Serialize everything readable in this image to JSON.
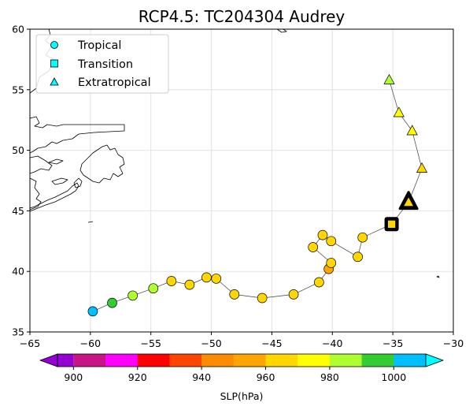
{
  "title": "RCP4.5: TC204304 Audrey",
  "legend": {
    "placement": "top-left",
    "items": [
      {
        "label": "Tropical",
        "marker": "circle"
      },
      {
        "label": "Transition",
        "marker": "square"
      },
      {
        "label": "Extratropical",
        "marker": "triangle"
      }
    ]
  },
  "colorbar": {
    "label": "SLP(hPa)",
    "tick_labels": [
      "900",
      "920",
      "940",
      "960",
      "980",
      "1000"
    ],
    "tick_values": [
      900,
      920,
      940,
      960,
      980,
      1000
    ],
    "bounds": [
      895,
      1010
    ],
    "extend": "both",
    "segments": [
      {
        "from": 900,
        "to": 905,
        "color": "#c71585"
      },
      {
        "from": 905,
        "to": 910,
        "color": "#c71585"
      },
      {
        "from": 910,
        "to": 920,
        "color": "#ff00ff"
      },
      {
        "from": 920,
        "to": 930,
        "color": "#ff0000"
      },
      {
        "from": 930,
        "to": 940,
        "color": "#ff4500"
      },
      {
        "from": 940,
        "to": 950,
        "color": "#ff8c00"
      },
      {
        "from": 950,
        "to": 960,
        "color": "#ffa500"
      },
      {
        "from": 960,
        "to": 970,
        "color": "#ffd700"
      },
      {
        "from": 970,
        "to": 980,
        "color": "#ffff00"
      },
      {
        "from": 980,
        "to": 990,
        "color": "#adff2f"
      },
      {
        "from": 990,
        "to": 1000,
        "color": "#32cd32"
      },
      {
        "from": 1000,
        "to": 1010,
        "color": "#00bfff"
      }
    ],
    "under_color": "#9400d3",
    "over_color": "#00ffff"
  },
  "chart_data": {
    "type": "scatter",
    "title": "RCP4.5: TC204304 Audrey",
    "xlim": [
      -65,
      -30
    ],
    "ylim": [
      35,
      60
    ],
    "x_tick_labels": [
      "−65",
      "−60",
      "−55",
      "−50",
      "−45",
      "−40",
      "−35",
      "−30"
    ],
    "x_tick_values": [
      -65,
      -60,
      -55,
      -50,
      -45,
      -40,
      -35,
      -30
    ],
    "y_tick_labels": [
      "35",
      "40",
      "45",
      "50",
      "55",
      "60"
    ],
    "y_tick_values": [
      35,
      40,
      45,
      50,
      55,
      60
    ],
    "grid": true,
    "track": [
      {
        "lon": -59.8,
        "lat": 36.7,
        "phase": "tropical",
        "color": "#00bfff"
      },
      {
        "lon": -58.2,
        "lat": 37.4,
        "phase": "tropical",
        "color": "#32cd32"
      },
      {
        "lon": -56.5,
        "lat": 38.0,
        "phase": "tropical",
        "color": "#adff2f"
      },
      {
        "lon": -54.8,
        "lat": 38.6,
        "phase": "tropical",
        "color": "#adff2f"
      },
      {
        "lon": -53.3,
        "lat": 39.2,
        "phase": "tropical",
        "color": "#ffd700"
      },
      {
        "lon": -51.8,
        "lat": 38.9,
        "phase": "tropical",
        "color": "#ffd700"
      },
      {
        "lon": -50.4,
        "lat": 39.5,
        "phase": "tropical",
        "color": "#ffd700"
      },
      {
        "lon": -49.6,
        "lat": 39.4,
        "phase": "tropical",
        "color": "#ffd700"
      },
      {
        "lon": -48.1,
        "lat": 38.1,
        "phase": "tropical",
        "color": "#ffd700"
      },
      {
        "lon": -45.8,
        "lat": 37.8,
        "phase": "tropical",
        "color": "#ffd700"
      },
      {
        "lon": -43.2,
        "lat": 38.1,
        "phase": "tropical",
        "color": "#ffd700"
      },
      {
        "lon": -41.1,
        "lat": 39.1,
        "phase": "tropical",
        "color": "#ffd700"
      },
      {
        "lon": -40.3,
        "lat": 40.2,
        "phase": "tropical",
        "color": "#ffa500"
      },
      {
        "lon": -40.1,
        "lat": 40.7,
        "phase": "tropical",
        "color": "#ffd700"
      },
      {
        "lon": -41.6,
        "lat": 42.0,
        "phase": "tropical",
        "color": "#ffd700"
      },
      {
        "lon": -40.8,
        "lat": 43.0,
        "phase": "tropical",
        "color": "#ffd700"
      },
      {
        "lon": -40.1,
        "lat": 42.5,
        "phase": "tropical",
        "color": "#ffd700"
      },
      {
        "lon": -37.9,
        "lat": 41.2,
        "phase": "tropical",
        "color": "#ffd700"
      },
      {
        "lon": -37.5,
        "lat": 42.8,
        "phase": "tropical",
        "color": "#ffd700"
      },
      {
        "lon": -35.1,
        "lat": 43.9,
        "phase": "transition",
        "color": "#ffd700",
        "highlight": true
      },
      {
        "lon": -33.7,
        "lat": 45.7,
        "phase": "extratropical",
        "color": "#ffd700",
        "highlight": true
      },
      {
        "lon": -32.6,
        "lat": 48.5,
        "phase": "extratropical",
        "color": "#ffd700"
      },
      {
        "lon": -33.4,
        "lat": 51.6,
        "phase": "extratropical",
        "color": "#ffff00"
      },
      {
        "lon": -34.5,
        "lat": 53.1,
        "phase": "extratropical",
        "color": "#ffff00"
      },
      {
        "lon": -35.3,
        "lat": 55.8,
        "phase": "extratropical",
        "color": "#adff2f"
      }
    ]
  }
}
